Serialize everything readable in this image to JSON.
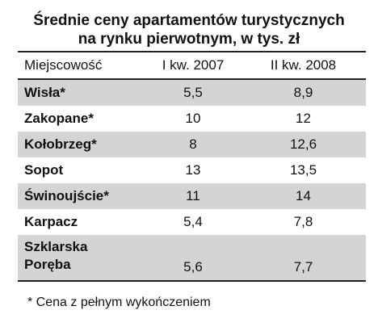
{
  "chart_data": {
    "type": "table",
    "title": "Średnie ceny apartamentów turystycznych na rynku pierwotnym, w tys. zł",
    "title_lines": [
      "Średnie ceny apartamentów turystycznych",
      "na rynku pierwotnym, w tys. zł"
    ],
    "columns": [
      "Miejscowość",
      "I kw. 2007",
      "II kw. 2008"
    ],
    "rows": [
      {
        "city": "Wisła*",
        "q1_2007": "5,5",
        "q2_2008": "8,9"
      },
      {
        "city": "Zakopane*",
        "q1_2007": "10",
        "q2_2008": "12"
      },
      {
        "city": "Kołobrzeg*",
        "q1_2007": "8",
        "q2_2008": "12,6"
      },
      {
        "city": "Sopot",
        "q1_2007": "13",
        "q2_2008": "13,5"
      },
      {
        "city": "Świnoujście*",
        "q1_2007": "11",
        "q2_2008": "14"
      },
      {
        "city": "Karpacz",
        "q1_2007": "5,4",
        "q2_2008": "7,8"
      },
      {
        "city_lines": [
          "Szklarska",
          "Poręba"
        ],
        "q1_2007": "5,6",
        "q2_2008": "7,7"
      }
    ],
    "footnote": "* Cena z pełnym wykończeniem",
    "colors": {
      "shaded_row": "#d4d4d4",
      "rule": "#222222",
      "text": "#111111"
    }
  }
}
